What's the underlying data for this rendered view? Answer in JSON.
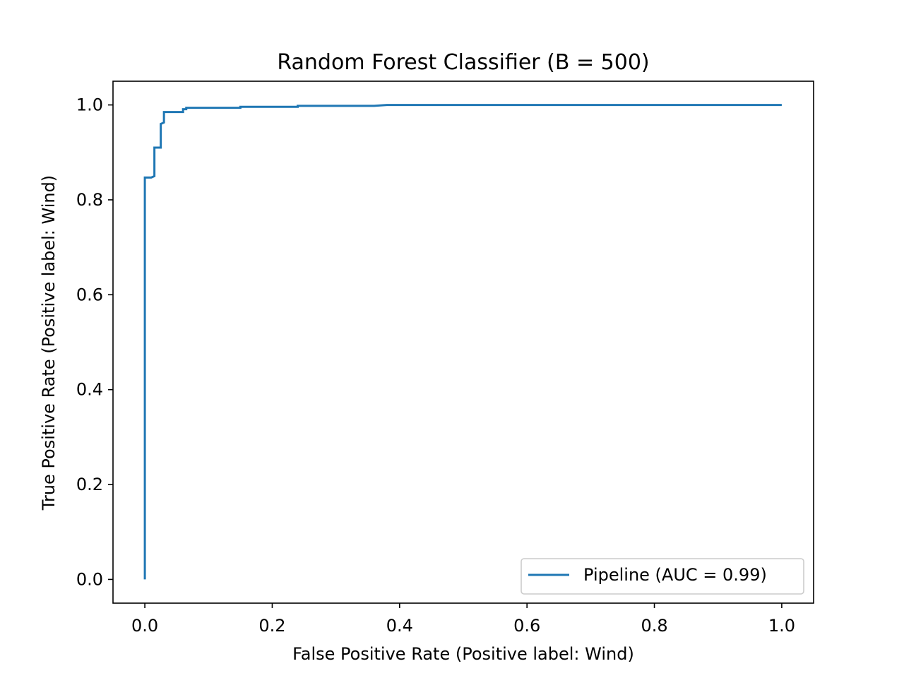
{
  "chart_data": {
    "type": "line",
    "title": "Random Forest Classifier (B = 500)",
    "xlabel": "False Positive Rate (Positive label: Wind)",
    "ylabel": "True Positive Rate (Positive label: Wind)",
    "xlim": [
      -0.05,
      1.05
    ],
    "ylim": [
      -0.05,
      1.05
    ],
    "xticks": [
      0.0,
      0.2,
      0.4,
      0.6,
      0.8,
      1.0
    ],
    "yticks": [
      0.0,
      0.2,
      0.4,
      0.6,
      0.8,
      1.0
    ],
    "xtick_labels": [
      "0.0",
      "0.2",
      "0.4",
      "0.6",
      "0.8",
      "1.0"
    ],
    "ytick_labels": [
      "0.0",
      "0.2",
      "0.4",
      "0.6",
      "0.8",
      "1.0"
    ],
    "grid": false,
    "legend_position": "lower right",
    "series": [
      {
        "name": "Pipeline (AUC = 0.99)",
        "color": "#1f77b4",
        "x": [
          0.0,
          0.0,
          0.01,
          0.015,
          0.015,
          0.025,
          0.025,
          0.03,
          0.03,
          0.06,
          0.06,
          0.065,
          0.065,
          0.15,
          0.15,
          0.24,
          0.24,
          0.36,
          0.38,
          1.0
        ],
        "y": [
          0.0,
          0.847,
          0.847,
          0.85,
          0.91,
          0.91,
          0.96,
          0.963,
          0.985,
          0.985,
          0.991,
          0.991,
          0.994,
          0.994,
          0.996,
          0.996,
          0.998,
          0.998,
          1.0,
          1.0
        ]
      }
    ]
  }
}
